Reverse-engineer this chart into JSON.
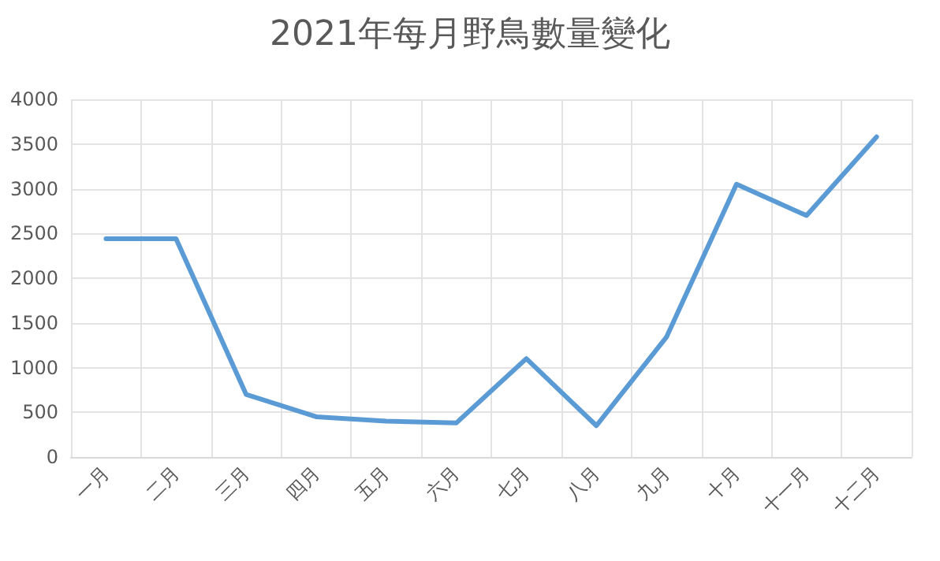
{
  "chart_data": {
    "type": "line",
    "title": "2021年每月野鳥數量變化",
    "categories": [
      "一月",
      "二月",
      "三月",
      "四月",
      "五月",
      "六月",
      "七月",
      "八月",
      "九月",
      "十月",
      "十一月",
      "十二月"
    ],
    "series": [
      {
        "color": "#5b9bd5",
        "values": [
          2440,
          2440,
          700,
          450,
          400,
          380,
          1100,
          350,
          1340,
          3050,
          2700,
          3580
        ]
      }
    ],
    "ylim": [
      0,
      4000
    ],
    "yticks": [
      0,
      500,
      1000,
      1500,
      2000,
      2500,
      3000,
      3500,
      4000
    ],
    "grid": true,
    "marker": "none",
    "line_style": "solid"
  }
}
